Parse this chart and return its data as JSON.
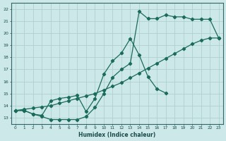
{
  "xlabel": "Humidex (Indice chaleur)",
  "bg_color": "#cce8e8",
  "grid_color": "#b0d0d0",
  "line_color": "#1a6b5a",
  "marker": "D",
  "markersize": 2.2,
  "linewidth": 0.9,
  "xlim": [
    -0.5,
    23.5
  ],
  "ylim": [
    12.5,
    22.5
  ],
  "xticks": [
    0,
    1,
    2,
    3,
    4,
    5,
    6,
    7,
    8,
    9,
    10,
    11,
    12,
    13,
    14,
    15,
    16,
    17,
    18,
    19,
    20,
    21,
    22,
    23
  ],
  "yticks": [
    13,
    14,
    15,
    16,
    17,
    18,
    19,
    20,
    21,
    22
  ],
  "curve_diagonal_x": [
    0,
    1,
    2,
    3,
    4,
    5,
    6,
    7,
    8,
    9,
    10,
    11,
    12,
    13,
    14,
    15,
    16,
    17,
    18,
    19,
    20,
    21,
    22,
    23
  ],
  "curve_diagonal_y": [
    13.6,
    13.7,
    13.8,
    13.9,
    14.0,
    14.2,
    14.4,
    14.6,
    14.8,
    15.0,
    15.3,
    15.6,
    15.9,
    16.3,
    16.7,
    17.1,
    17.5,
    17.9,
    18.3,
    18.7,
    19.1,
    19.4,
    19.6,
    19.6
  ],
  "curve_main_x": [
    0,
    1,
    2,
    3,
    4,
    5,
    6,
    7,
    8,
    9,
    10,
    11,
    12,
    13,
    14,
    15,
    16,
    17,
    18,
    19,
    20,
    21,
    22,
    23
  ],
  "curve_main_y": [
    13.6,
    13.6,
    13.3,
    13.1,
    12.85,
    12.85,
    12.85,
    12.85,
    13.1,
    13.85,
    15.0,
    16.35,
    17.0,
    17.5,
    21.8,
    21.2,
    21.2,
    21.5,
    21.35,
    21.35,
    21.15,
    21.15,
    21.15,
    19.6
  ],
  "curve_wave_x": [
    0,
    1,
    2,
    3,
    4,
    5,
    6,
    7,
    8,
    9,
    10,
    11,
    12,
    13,
    14,
    15,
    16,
    17
  ],
  "curve_wave_y": [
    13.6,
    13.6,
    13.3,
    13.2,
    14.4,
    14.6,
    14.7,
    14.85,
    13.5,
    14.6,
    16.6,
    17.7,
    18.35,
    19.55,
    18.2,
    16.4,
    15.4,
    15.05
  ]
}
